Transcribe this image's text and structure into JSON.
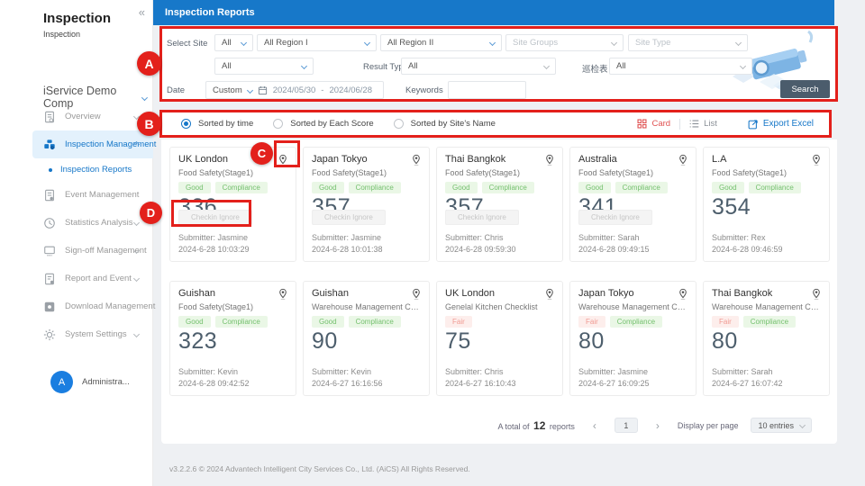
{
  "colors": {
    "accent_blue": "#1677c8",
    "header_blue": "#1778c9",
    "annotation_red": "#e3201b",
    "badge_good_bg": "#eaf7e6",
    "badge_good_text": "#74c06e",
    "badge_fair_bg": "#fdeeec",
    "badge_fair_text": "#f09b93",
    "search_button_bg": "#4b5c6c",
    "score_text": "#4d5e6c",
    "card_view_red": "#e05252"
  },
  "sidebar": {
    "collapse_icon": "«",
    "app_title": "Inspection",
    "app_subtitle": "Inspection",
    "company": "iService Demo Comp",
    "items": [
      {
        "label": "Overview"
      },
      {
        "label": "Inspection Management"
      },
      {
        "label": "Event Management"
      },
      {
        "label": "Statistics Analysis"
      },
      {
        "label": "Sign-off Management"
      },
      {
        "label": "Report and Event"
      },
      {
        "label": "Download Management"
      },
      {
        "label": "System Settings"
      }
    ],
    "active_subitem": "Inspection Reports",
    "user": {
      "initial": "A",
      "name": "Administra..."
    }
  },
  "header": {
    "title": "Inspection Reports"
  },
  "filters": {
    "select_site_label": "Select Site",
    "site_value": "All",
    "region1_value": "All Region I",
    "region2_value": "All Region II",
    "site_groups_placeholder": "Site Groups",
    "site_type_placeholder": "Site Type",
    "checklist_value": "All",
    "result_type_label": "Result Type",
    "result_type_value": "All",
    "patrol_form_label": "巡检表",
    "patrol_form_value": "All",
    "date_label": "Date",
    "date_mode": "Custom",
    "date_start": "2024/05/30",
    "date_separator": "-",
    "date_end": "2024/06/28",
    "keywords_label": "Keywords",
    "search_label": "Search"
  },
  "sortbar": {
    "options": [
      {
        "label": "Sorted by time",
        "selected": true
      },
      {
        "label": "Sorted by Each Score",
        "selected": false
      },
      {
        "label": "Sorted by Site's Name",
        "selected": false
      }
    ],
    "card_label": "Card",
    "list_label": "List",
    "export_label": "Export Excel"
  },
  "cards": [
    {
      "site": "UK London",
      "checklist": "Food Safety(Stage1)",
      "badges": [
        {
          "label": "Good",
          "type": "good"
        },
        {
          "label": "Compliance",
          "type": "good"
        }
      ],
      "score": "336",
      "action": "Checkin Ignore",
      "submitter": "Submitter: Jasmine",
      "time": "2024-6-28 10:03:29"
    },
    {
      "site": "Japan Tokyo",
      "checklist": "Food Safety(Stage1)",
      "badges": [
        {
          "label": "Good",
          "type": "good"
        },
        {
          "label": "Compliance",
          "type": "good"
        }
      ],
      "score": "357",
      "action": "Checkin Ignore",
      "submitter": "Submitter: Jasmine",
      "time": "2024-6-28 10:01:38"
    },
    {
      "site": "Thai Bangkok",
      "checklist": "Food Safety(Stage1)",
      "badges": [
        {
          "label": "Good",
          "type": "good"
        },
        {
          "label": "Compliance",
          "type": "good"
        }
      ],
      "score": "357",
      "action": "Checkin Ignore",
      "submitter": "Submitter: Chris",
      "time": "2024-6-28 09:59:30"
    },
    {
      "site": "Australia",
      "checklist": "Food Safety(Stage1)",
      "badges": [
        {
          "label": "Good",
          "type": "good"
        },
        {
          "label": "Compliance",
          "type": "good"
        }
      ],
      "score": "341",
      "action": "Checkin Ignore",
      "submitter": "Submitter: Sarah",
      "time": "2024-6-28 09:49:15"
    },
    {
      "site": "L.A",
      "checklist": "Food Safety(Stage1)",
      "badges": [
        {
          "label": "Good",
          "type": "good"
        },
        {
          "label": "Compliance",
          "type": "good"
        }
      ],
      "score": "354",
      "action": null,
      "submitter": "Submitter: Rex",
      "time": "2024-6-28 09:46:59"
    },
    {
      "site": "Guishan",
      "checklist": "Food Safety(Stage1)",
      "badges": [
        {
          "label": "Good",
          "type": "good"
        },
        {
          "label": "Compliance",
          "type": "good"
        }
      ],
      "score": "323",
      "action": null,
      "submitter": "Submitter: Kevin",
      "time": "2024-6-28 09:42:52"
    },
    {
      "site": "Guishan",
      "checklist": "Warehouse Management Checkli...",
      "badges": [
        {
          "label": "Good",
          "type": "good"
        },
        {
          "label": "Compliance",
          "type": "good"
        }
      ],
      "score": "90",
      "action": null,
      "submitter": "Submitter: Kevin",
      "time": "2024-6-27 16:16:56"
    },
    {
      "site": "UK London",
      "checklist": "Genelal Kitchen Checklist",
      "badges": [
        {
          "label": "Fair",
          "type": "fair"
        }
      ],
      "score": "75",
      "action": null,
      "submitter": "Submitter: Chris",
      "time": "2024-6-27 16:10:43"
    },
    {
      "site": "Japan Tokyo",
      "checklist": "Warehouse Management Checkli...",
      "badges": [
        {
          "label": "Fair",
          "type": "fair"
        },
        {
          "label": "Compliance",
          "type": "good"
        }
      ],
      "score": "80",
      "action": null,
      "submitter": "Submitter: Jasmine",
      "time": "2024-6-27 16:09:25"
    },
    {
      "site": "Thai Bangkok",
      "checklist": "Warehouse Management Checkli...",
      "badges": [
        {
          "label": "Fair",
          "type": "fair"
        },
        {
          "label": "Compliance",
          "type": "good"
        }
      ],
      "score": "80",
      "action": null,
      "submitter": "Submitter: Sarah",
      "time": "2024-6-27 16:07:42"
    }
  ],
  "pagination": {
    "total_prefix": "A total of",
    "total_count": "12",
    "total_suffix": "reports",
    "prev": "‹",
    "page": "1",
    "next": "›",
    "display_label": "Display per page",
    "entries_value": "10 entries"
  },
  "footer": {
    "text": "v3.2.2.6 © 2024 Advantech Intelligent City Services Co., Ltd. (AiCS) All Rights Reserved."
  },
  "annotations": {
    "a": "A",
    "b": "B",
    "c": "C",
    "d": "D"
  }
}
